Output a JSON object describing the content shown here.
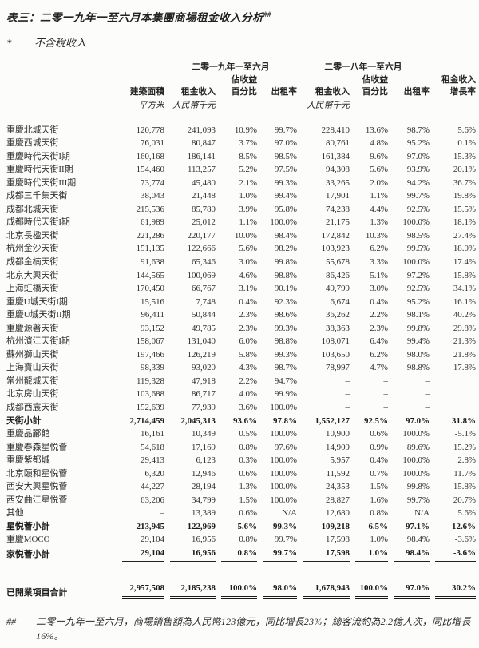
{
  "title": {
    "text": "表三：二零一九年一至六月本集團商場租金收入分析",
    "sup": "##"
  },
  "tax_note": {
    "marker": "*",
    "text": "不含稅收入"
  },
  "table": {
    "header": {
      "group_2019": "二零一九年一至六月",
      "group_2018": "二零一八年一至六月",
      "share_line1": "佔收益",
      "share_line2": "百分比",
      "growth_line1": "租金收入",
      "growth_line2": "增長率",
      "area": "建築面積",
      "area_unit": "平方米",
      "rental_income": "租金收入",
      "rmb_unit": "人民幣千元",
      "occupancy": "出租率"
    },
    "rows": [
      {
        "name": "重慶北城天街",
        "v": [
          "120,778",
          "241,093",
          "10.9%",
          "99.7%",
          "228,410",
          "13.6%",
          "98.7%",
          "5.6%"
        ]
      },
      {
        "name": "重慶西城天街",
        "v": [
          "76,031",
          "80,847",
          "3.7%",
          "97.0%",
          "80,761",
          "4.8%",
          "95.2%",
          "0.1%"
        ]
      },
      {
        "name": "重慶時代天街I期",
        "v": [
          "160,168",
          "186,141",
          "8.5%",
          "98.5%",
          "161,384",
          "9.6%",
          "97.0%",
          "15.3%"
        ]
      },
      {
        "name": "重慶時代天街II期",
        "v": [
          "154,460",
          "113,257",
          "5.2%",
          "97.5%",
          "94,308",
          "5.6%",
          "93.9%",
          "20.1%"
        ]
      },
      {
        "name": "重慶時代天街III期",
        "v": [
          "73,774",
          "45,480",
          "2.1%",
          "99.3%",
          "33,265",
          "2.0%",
          "94.2%",
          "36.7%"
        ]
      },
      {
        "name": "成都三千集天街",
        "v": [
          "38,043",
          "21,448",
          "1.0%",
          "99.4%",
          "17,901",
          "1.1%",
          "99.7%",
          "19.8%"
        ]
      },
      {
        "name": "成都北城天街",
        "v": [
          "215,536",
          "85,780",
          "3.9%",
          "95.8%",
          "74,238",
          "4.4%",
          "92.5%",
          "15.5%"
        ]
      },
      {
        "name": "成都時代天街I期",
        "v": [
          "61,989",
          "25,012",
          "1.1%",
          "100.0%",
          "21,175",
          "1.3%",
          "100.0%",
          "18.1%"
        ]
      },
      {
        "name": "北京長楹天街",
        "v": [
          "221,286",
          "220,177",
          "10.0%",
          "98.4%",
          "172,842",
          "10.3%",
          "98.5%",
          "27.4%"
        ]
      },
      {
        "name": "杭州金沙天街",
        "v": [
          "151,135",
          "122,666",
          "5.6%",
          "98.2%",
          "103,923",
          "6.2%",
          "99.5%",
          "18.0%"
        ]
      },
      {
        "name": "成都金楠天街",
        "v": [
          "91,638",
          "65,346",
          "3.0%",
          "99.8%",
          "55,678",
          "3.3%",
          "100.0%",
          "17.4%"
        ]
      },
      {
        "name": "北京大興天街",
        "v": [
          "144,565",
          "100,069",
          "4.6%",
          "98.8%",
          "86,426",
          "5.1%",
          "97.2%",
          "15.8%"
        ]
      },
      {
        "name": "上海虹橋天街",
        "v": [
          "170,450",
          "66,767",
          "3.1%",
          "90.1%",
          "49,799",
          "3.0%",
          "92.5%",
          "34.1%"
        ]
      },
      {
        "name": "重慶U城天街I期",
        "v": [
          "15,516",
          "7,748",
          "0.4%",
          "92.3%",
          "6,674",
          "0.4%",
          "95.2%",
          "16.1%"
        ]
      },
      {
        "name": "重慶U城天街II期",
        "v": [
          "96,411",
          "50,844",
          "2.3%",
          "98.6%",
          "36,262",
          "2.2%",
          "98.1%",
          "40.2%"
        ]
      },
      {
        "name": "重慶源著天街",
        "v": [
          "93,152",
          "49,785",
          "2.3%",
          "99.3%",
          "38,363",
          "2.3%",
          "99.8%",
          "29.8%"
        ]
      },
      {
        "name": "杭州濱江天街I期",
        "v": [
          "158,067",
          "131,040",
          "6.0%",
          "98.8%",
          "108,071",
          "6.4%",
          "99.4%",
          "21.3%"
        ]
      },
      {
        "name": "蘇州獅山天街",
        "v": [
          "197,466",
          "126,219",
          "5.8%",
          "99.3%",
          "103,650",
          "6.2%",
          "98.0%",
          "21.8%"
        ]
      },
      {
        "name": "上海寶山天街",
        "v": [
          "98,339",
          "93,020",
          "4.3%",
          "98.7%",
          "78,997",
          "4.7%",
          "98.8%",
          "17.8%"
        ]
      },
      {
        "name": "常州龍城天街",
        "v": [
          "119,328",
          "47,918",
          "2.2%",
          "94.7%",
          "–",
          "–",
          "–",
          ""
        ]
      },
      {
        "name": "北京房山天街",
        "v": [
          "103,688",
          "86,717",
          "4.0%",
          "99.9%",
          "–",
          "–",
          "–",
          ""
        ]
      },
      {
        "name": "成都西宸天街",
        "v": [
          "152,639",
          "77,939",
          "3.6%",
          "100.0%",
          "–",
          "–",
          "–",
          ""
        ]
      },
      {
        "name": "天街小計",
        "bold": true,
        "v": [
          "2,714,459",
          "2,045,313",
          "93.6%",
          "97.8%",
          "1,552,127",
          "92.5%",
          "97.0%",
          "31.8%"
        ]
      },
      {
        "name": "重慶晶酈館",
        "v": [
          "16,161",
          "10,349",
          "0.5%",
          "100.0%",
          "10,900",
          "0.6%",
          "100.0%",
          "-5.1%"
        ]
      },
      {
        "name": "重慶春森星悦薈",
        "v": [
          "54,618",
          "17,169",
          "0.8%",
          "97.6%",
          "14,909",
          "0.9%",
          "89.6%",
          "15.2%"
        ]
      },
      {
        "name": "重慶紫都城",
        "v": [
          "29,413",
          "6,123",
          "0.3%",
          "100.0%",
          "5,957",
          "0.4%",
          "100.0%",
          "2.8%"
        ]
      },
      {
        "name": "北京頤和星悦薈",
        "v": [
          "6,320",
          "12,946",
          "0.6%",
          "100.0%",
          "11,592",
          "0.7%",
          "100.0%",
          "11.7%"
        ]
      },
      {
        "name": "西安大興星悦薈",
        "v": [
          "44,227",
          "28,194",
          "1.3%",
          "100.0%",
          "24,353",
          "1.5%",
          "99.8%",
          "15.8%"
        ]
      },
      {
        "name": "西安曲江星悦薈",
        "v": [
          "63,206",
          "34,799",
          "1.5%",
          "100.0%",
          "28,827",
          "1.6%",
          "99.7%",
          "20.7%"
        ]
      },
      {
        "name": "其他",
        "v": [
          "–",
          "13,389",
          "0.6%",
          "N/A",
          "12,680",
          "0.8%",
          "N/A",
          "5.6%"
        ]
      },
      {
        "name": "星悦薈小計",
        "bold": true,
        "v": [
          "213,945",
          "122,969",
          "5.6%",
          "99.3%",
          "109,218",
          "6.5%",
          "97.1%",
          "12.6%"
        ]
      },
      {
        "name": "重慶MOCO",
        "v": [
          "29,104",
          "16,956",
          "0.8%",
          "99.7%",
          "17,598",
          "1.0%",
          "98.4%",
          "-3.6%"
        ]
      },
      {
        "name": "家悦薈小計",
        "bold": true,
        "rule": "single",
        "v": [
          "29,104",
          "16,956",
          "0.8%",
          "99.7%",
          "17,598",
          "1.0%",
          "98.4%",
          "-3.6%"
        ]
      },
      {
        "name": "已開業項目合計",
        "bold": true,
        "rule": "double",
        "gap_before": true,
        "v": [
          "2,957,508",
          "2,185,238",
          "100.0%",
          "98.0%",
          "1,678,943",
          "100.0%",
          "97.0%",
          "30.2%"
        ]
      }
    ]
  },
  "footnote": {
    "marker": "##",
    "text": "二零一九年一至六月，商場銷售額為人民幣123億元，同比增長23%；總客流約為2.2億人次，同比增長16%。"
  }
}
